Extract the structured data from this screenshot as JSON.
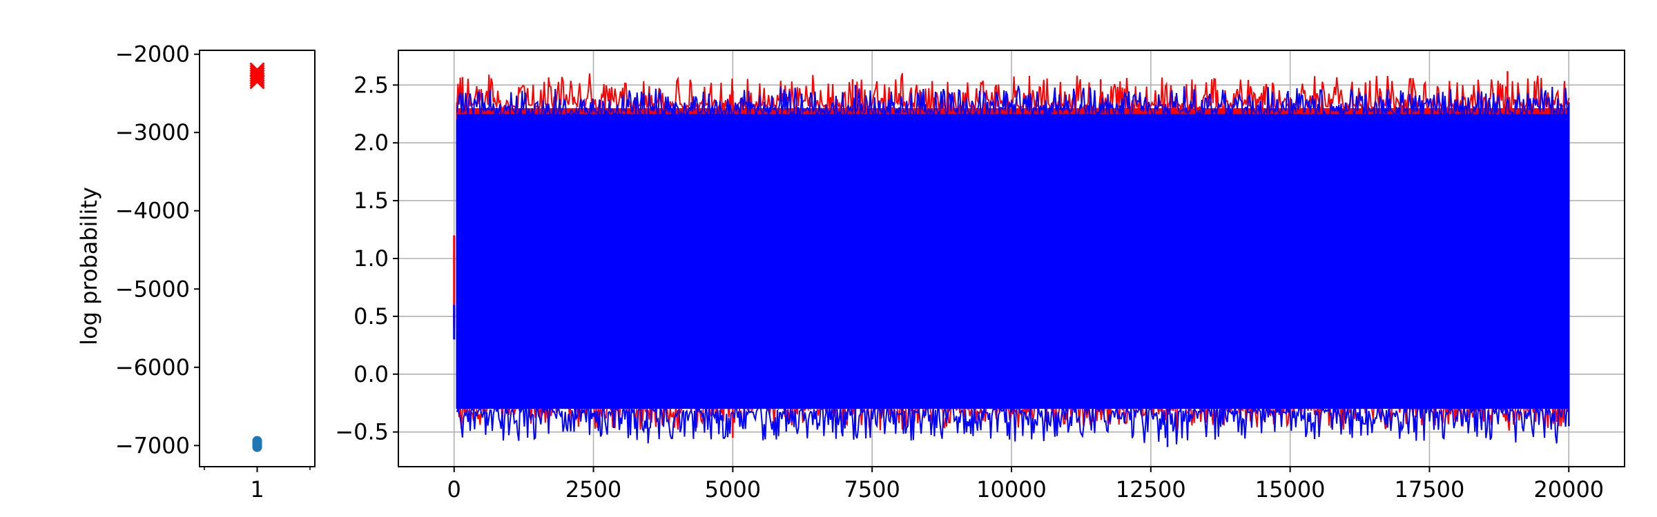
{
  "chart_data": [
    {
      "type": "scatter",
      "ylabel": "log probability",
      "xlabel": "",
      "title": "",
      "x_ticks": [
        1
      ],
      "xlim": [
        0.5,
        1.5
      ],
      "ylim": [
        -7270,
        -1950
      ],
      "y_ticks": [
        -2000,
        -3000,
        -4000,
        -5000,
        -6000,
        -7000
      ],
      "grid": false,
      "series": [
        {
          "marker": "x",
          "color": "#ff0000",
          "points": [
            {
              "x": 1,
              "y": -2200
            },
            {
              "x": 1,
              "y": -2230
            },
            {
              "x": 1,
              "y": -2260
            },
            {
              "x": 1,
              "y": -2290
            },
            {
              "x": 1,
              "y": -2320
            },
            {
              "x": 1,
              "y": -2350
            }
          ]
        },
        {
          "marker": "o",
          "color": "#1f77b4",
          "points": [
            {
              "x": 1,
              "y": -6940
            },
            {
              "x": 1,
              "y": -6960
            },
            {
              "x": 1,
              "y": -6980
            },
            {
              "x": 1,
              "y": -7000
            },
            {
              "x": 1,
              "y": -7020
            }
          ]
        }
      ]
    },
    {
      "type": "line",
      "xlabel": "",
      "ylabel": "",
      "title": "",
      "xlim": [
        -1000,
        21000
      ],
      "ylim": [
        -0.8,
        2.8
      ],
      "x_ticks": [
        0,
        2500,
        5000,
        7500,
        10000,
        12500,
        15000,
        17500,
        20000
      ],
      "y_ticks": [
        -0.5,
        0.0,
        0.5,
        1.0,
        1.5,
        2.0,
        2.5
      ],
      "y_tick_labels": [
        "−0.5",
        "0.0",
        "0.5",
        "1.0",
        "1.5",
        "2.0",
        "2.5"
      ],
      "grid": true,
      "n_samples": 20000,
      "series": [
        {
          "color": "#ff0000",
          "band_low": -0.25,
          "band_high": 2.3,
          "envelope": [
            {
              "x": 0,
              "min": 0.4,
              "max": 1.2
            },
            {
              "x": 50,
              "min": -0.25,
              "max": 2.35
            },
            {
              "x": 5000,
              "min": -0.55,
              "max": 2.45
            },
            {
              "x": 7150,
              "min": -0.35,
              "max": 2.55
            },
            {
              "x": 11600,
              "min": -0.35,
              "max": 2.55
            },
            {
              "x": 18900,
              "min": -0.4,
              "max": 2.62
            },
            {
              "x": 20000,
              "min": -0.3,
              "max": 2.35
            }
          ]
        },
        {
          "color": "#0000ff",
          "band_low": -0.3,
          "band_high": 2.25,
          "envelope": [
            {
              "x": 0,
              "min": 0.3,
              "max": 0.6
            },
            {
              "x": 50,
              "min": -0.3,
              "max": 2.2
            },
            {
              "x": 7200,
              "min": -0.45,
              "max": 2.5
            },
            {
              "x": 12800,
              "min": -0.63,
              "max": 2.3
            },
            {
              "x": 20000,
              "min": -0.45,
              "max": 2.35
            }
          ]
        }
      ]
    }
  ]
}
